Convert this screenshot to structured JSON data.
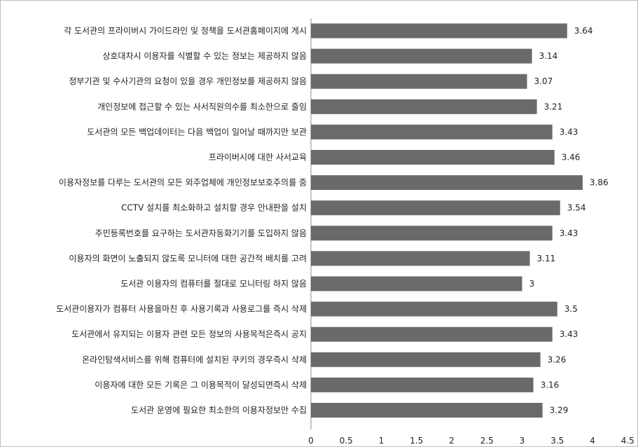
{
  "chart_data": {
    "type": "bar",
    "orientation": "horizontal",
    "categories": [
      "각 도서관의 프라이버시 가이드라인 및 정책을 도서관홈페이지에 게시",
      "상호대차시 이용자를 식별할 수 있는 정보는 제공하지 않음",
      "정부기관 및 수사기관의 요청이 있을 경우 개인정보를 제공하지 않음",
      "개인정보에 접근할 수 있는 사서직원의수를 최소한으로 줄임",
      "도서관의 모든 백업데이터는 다음 백업이 일어날 때까지만 보관",
      "프라이버시에 대한 사서교육",
      "이용자정보를 다루는 도서관의 모든 외주업체에 개인정보보호주의를 줌",
      "CCTV 설치를 최소화하고 설치할 경우 안내판을 설치",
      "주민등록번호를 요구하는 도서관자동화기기를 도입하지 않음",
      "이용자의 화면이 노출되지 않도록 모니터에 대한 공간적 배치를 고려",
      "도서관 이용자의 컴퓨터를 절대로 모니터링 하지 않음",
      "도서관이용자가 컴퓨터 사용을마친 후 사용기록과 사용로그를 즉시 삭제",
      "도서관에서 유지되는 이용자 관련 모든 정보의 사용목적은즉시 공지",
      "온라인탐색서비스를 위해 컴퓨터에 설치된 쿠키의 경우즉시 삭제",
      "이용자에 대한 모든 기록은 그 이용목적이 달성되면즉시 삭제",
      "도서관 운영에 필요한 최소한의 이용자정보만 수집"
    ],
    "values": [
      3.64,
      3.14,
      3.07,
      3.21,
      3.43,
      3.46,
      3.86,
      3.54,
      3.43,
      3.11,
      3,
      3.5,
      3.43,
      3.26,
      3.16,
      3.29
    ],
    "value_labels": [
      "3.64",
      "3.14",
      "3.07",
      "3.21",
      "3.43",
      "3.46",
      "3.86",
      "3.54",
      "3.43",
      "3.11",
      "3",
      "3.5",
      "3.43",
      "3.26",
      "3.16",
      "3.29"
    ],
    "x_ticks": [
      "0",
      "0.5",
      "1",
      "1.5",
      "2",
      "2.5",
      "3",
      "3.5",
      "4",
      "4.5"
    ],
    "xlim": [
      0,
      4.5
    ],
    "title": "",
    "xlabel": "",
    "ylabel": "",
    "grid": false,
    "legend": "none",
    "bar_color": "#6a6a6a"
  }
}
